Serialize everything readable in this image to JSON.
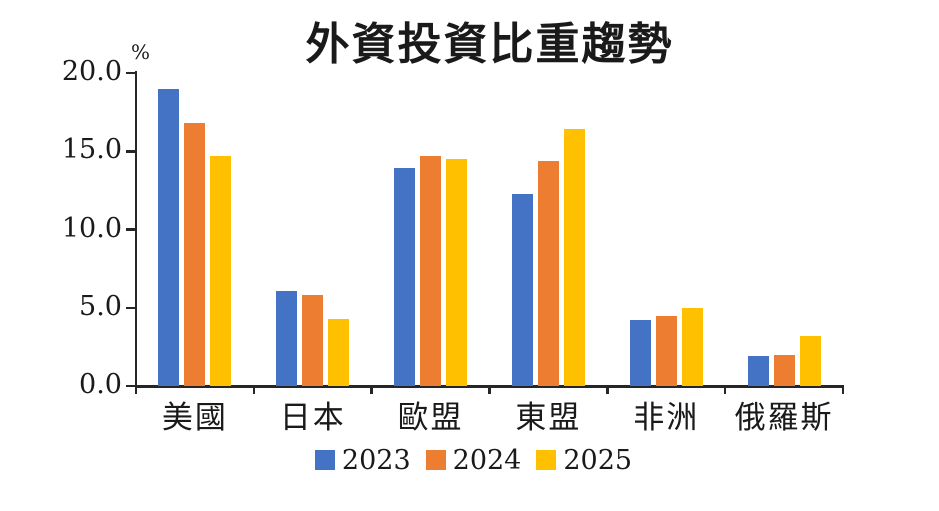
{
  "chart_data": {
    "type": "bar",
    "title": "外資投資比重趨勢",
    "unit_label": "%",
    "xlabel": "",
    "ylabel": "%",
    "categories": [
      "美國",
      "日本",
      "歐盟",
      "東盟",
      "非洲",
      "俄羅斯"
    ],
    "series": [
      {
        "name": "2023",
        "color": "#4472C4",
        "values": [
          19.0,
          6.1,
          13.9,
          12.3,
          4.2,
          1.9
        ]
      },
      {
        "name": "2024",
        "color": "#ED7D31",
        "values": [
          16.8,
          5.8,
          14.7,
          14.4,
          4.5,
          2.0
        ]
      },
      {
        "name": "2025",
        "color": "#FFC000",
        "values": [
          14.7,
          4.3,
          14.5,
          16.4,
          5.0,
          3.2
        ]
      }
    ],
    "ylim": [
      0,
      20
    ],
    "yticks": [
      0,
      5,
      10,
      15,
      20
    ],
    "ytick_labels": [
      "0.0",
      "5.0",
      "10.0",
      "15.0",
      "20.0"
    ],
    "grid": false,
    "legend_position": "bottom",
    "background_color": "#ffffff",
    "axis_color": "#262626",
    "text_color": "#1a1a1a"
  }
}
